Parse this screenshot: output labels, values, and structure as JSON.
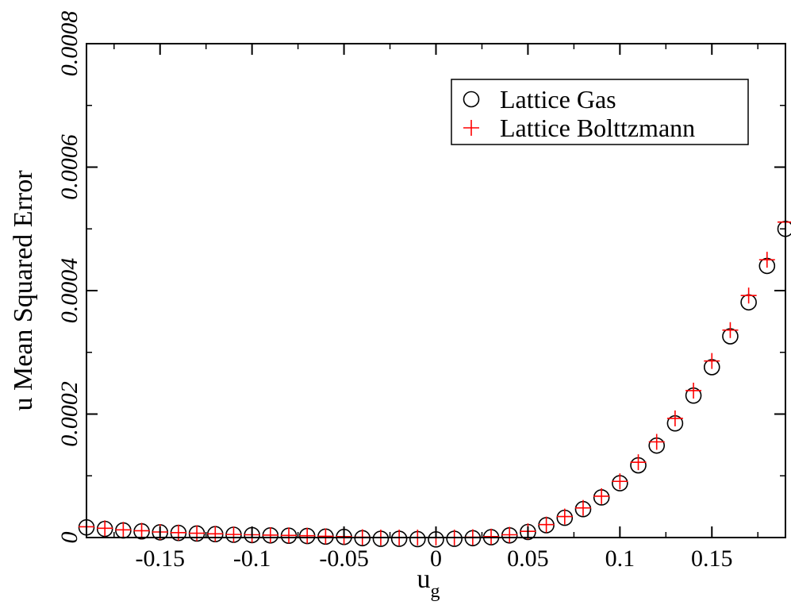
{
  "chart_data": {
    "type": "scatter",
    "xlabel": "u",
    "xlabel_sub": "g",
    "ylabel": "u Mean Squared Error",
    "xlim": [
      -0.19,
      0.19
    ],
    "ylim": [
      0,
      0.0008
    ],
    "x_ticks": [
      -0.15,
      -0.1,
      -0.05,
      0,
      0.05,
      0.1,
      0.15
    ],
    "x_tick_labels": [
      "-0.15",
      "-0.1",
      "-0.05",
      "0",
      "0.05",
      "0.1",
      "0.15"
    ],
    "y_ticks": [
      0,
      0.0002,
      0.0004,
      0.0006,
      0.0008
    ],
    "y_tick_labels": [
      "0",
      "0.0002",
      "0.0004",
      "0.0006",
      "0.0008"
    ],
    "grid": false,
    "legend_position": "top-right",
    "series": [
      {
        "name": "Lattice Gas",
        "marker": "circle",
        "color": "#000000",
        "x": [
          -0.19,
          -0.18,
          -0.17,
          -0.16,
          -0.15,
          -0.14,
          -0.13,
          -0.12,
          -0.11,
          -0.1,
          -0.09,
          -0.08,
          -0.07,
          -0.06,
          -0.05,
          -0.04,
          -0.03,
          -0.02,
          -0.01,
          0.0,
          0.01,
          0.02,
          0.03,
          0.04,
          0.05,
          0.06,
          0.07,
          0.08,
          0.09,
          0.1,
          0.11,
          0.12,
          0.13,
          0.14,
          0.15,
          0.16,
          0.17,
          0.18,
          0.19
        ],
        "y": [
          1.65e-05,
          1.4e-05,
          1.15e-05,
          1e-05,
          8.5e-06,
          7.5e-06,
          6.5e-06,
          5.5e-06,
          4.5e-06,
          4e-06,
          3.5e-06,
          3e-06,
          2.5e-06,
          1.5e-06,
          1e-06,
          -1e-06,
          -2e-06,
          -2e-06,
          -2.5e-06,
          -3e-06,
          -2e-06,
          -1e-06,
          5e-07,
          3.5e-06,
          9e-06,
          2e-05,
          3.2e-05,
          4.6e-05,
          6.5e-05,
          8.8e-05,
          0.000117,
          0.000149,
          0.000185,
          0.00023,
          0.000276,
          0.000326,
          0.000381,
          0.00044,
          0.0005
        ]
      },
      {
        "name": "Lattice Bolttzmann",
        "marker": "plus",
        "color": "#ff0000",
        "x": [
          -0.19,
          -0.18,
          -0.17,
          -0.16,
          -0.15,
          -0.14,
          -0.13,
          -0.12,
          -0.11,
          -0.1,
          -0.09,
          -0.08,
          -0.07,
          -0.06,
          -0.05,
          -0.04,
          -0.03,
          -0.02,
          -0.01,
          0.0,
          0.01,
          0.02,
          0.03,
          0.04,
          0.05,
          0.06,
          0.07,
          0.08,
          0.09,
          0.1,
          0.11,
          0.12,
          0.13,
          0.14,
          0.15,
          0.16,
          0.17,
          0.18,
          0.19
        ],
        "y": [
          1.75e-05,
          1.5e-05,
          1.25e-05,
          1.1e-05,
          9e-06,
          8e-06,
          7e-06,
          6e-06,
          5e-06,
          4.5e-06,
          4e-06,
          3.5e-06,
          3e-06,
          2e-06,
          1.5e-06,
          5e-07,
          0.0,
          0.0,
          0.0,
          0.0,
          0.0,
          5e-07,
          1.5e-06,
          4.5e-06,
          1e-05,
          2.1e-05,
          3.4e-05,
          4.8e-05,
          6.7e-05,
          9.1e-05,
          0.000122,
          0.000155,
          0.000193,
          0.000238,
          0.000286,
          0.000336,
          0.000392,
          0.00045,
          0.000511
        ]
      }
    ]
  }
}
